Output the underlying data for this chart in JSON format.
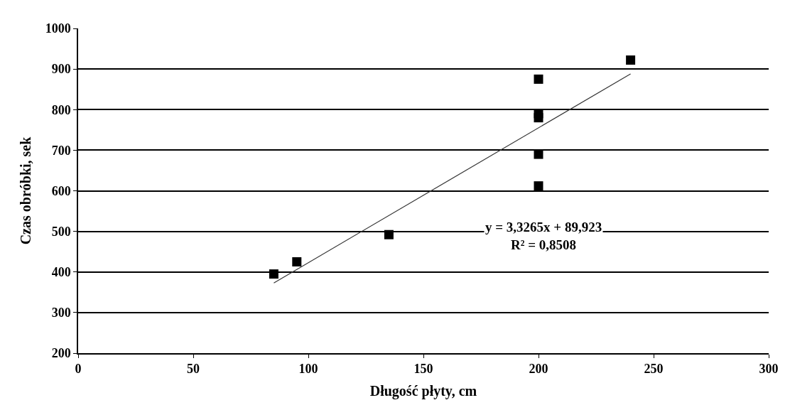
{
  "chart_data": {
    "type": "scatter",
    "xlabel": "Długość płyty, cm",
    "ylabel": "Czas obróbki, sek",
    "xlim": [
      0,
      300
    ],
    "xticks": [
      0,
      50,
      100,
      150,
      200,
      250,
      300
    ],
    "ylim": [
      200,
      1000
    ],
    "yticks": [
      200,
      300,
      400,
      500,
      600,
      700,
      800,
      900,
      1000
    ],
    "grid": "y",
    "marker": "square",
    "series": [
      {
        "color": "#000000",
        "x": [
          85,
          95,
          135,
          200,
          200,
          200,
          200,
          200,
          240
        ],
        "values": [
          395,
          425,
          492,
          875,
          790,
          780,
          690,
          612,
          922
        ]
      },
      {
        "type": "line",
        "color": "#333333",
        "marker": "none",
        "x": [
          85,
          240
        ],
        "values": [
          373,
          888
        ]
      }
    ],
    "annotations": [
      "y = 3,3265x + 89,923\nR² = 0,8508"
    ]
  }
}
